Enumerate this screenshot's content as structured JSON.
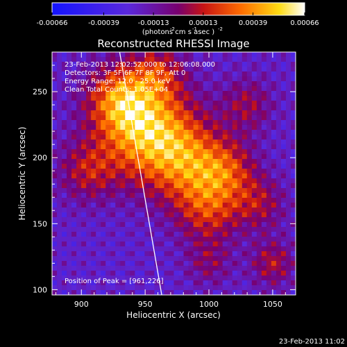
{
  "chart_data": {
    "type": "heatmap",
    "title": "Reconstructed RHESSI Image",
    "xlabel": "Heliocentric X (arcsec)",
    "ylabel": "Heliocentric Y (arcsec)",
    "xlim": [
      877,
      1068
    ],
    "ylim": [
      96,
      280
    ],
    "x_ticks": [
      900,
      950,
      1000,
      1050
    ],
    "y_ticks": [
      100,
      150,
      200,
      250
    ],
    "annotations": [
      "23-Feb-2013 12:02:52.000 to 12:06:08.000",
      "Detectors: 3F 5F 6F 7F 8F 9F, Att 0",
      "Energy Range: 12.0 - 25.0 keV",
      "Clean    Total Counts: 1.05E+04"
    ],
    "peak_label": "Position of Peak = [961,226]",
    "peak": [
      961,
      226
    ],
    "limb_line": [
      [
        930,
        280
      ],
      [
        963,
        96
      ]
    ],
    "colorbar": {
      "range": [
        -0.00066,
        0.00066
      ],
      "tick_values": [
        -0.00066,
        -0.00039,
        -0.00013,
        0.00013,
        0.00039,
        0.00066
      ],
      "tick_labels": [
        "-0.00066",
        "-0.00039",
        "-0.00013",
        "0.00013",
        "0.00039",
        "0.00066"
      ],
      "unit_label": "(photons cm  s  asec )",
      "unit_exponents": [
        "-2",
        "-1",
        "-2"
      ]
    },
    "sources": [
      {
        "x": 952,
        "y": 220,
        "amp": 0.00066,
        "sigma": 26
      },
      {
        "x": 930,
        "y": 245,
        "amp": 0.00045,
        "sigma": 18
      },
      {
        "x": 985,
        "y": 195,
        "amp": 0.00042,
        "sigma": 22
      },
      {
        "x": 1000,
        "y": 160,
        "amp": 0.00035,
        "sigma": 18
      },
      {
        "x": 1015,
        "y": 190,
        "amp": 0.00032,
        "sigma": 16
      },
      {
        "x": 905,
        "y": 190,
        "amp": 0.0003,
        "sigma": 16
      },
      {
        "x": 1030,
        "y": 240,
        "amp": 0.00025,
        "sigma": 14
      },
      {
        "x": 1050,
        "y": 120,
        "amp": 0.0003,
        "sigma": 12
      },
      {
        "x": 1040,
        "y": 165,
        "amp": 0.00026,
        "sigma": 14
      },
      {
        "x": 1000,
        "y": 120,
        "amp": 0.0002,
        "sigma": 12
      },
      {
        "x": 960,
        "y": 265,
        "amp": 0.0003,
        "sigma": 14
      }
    ]
  },
  "footer": {
    "timestamp": "23-Feb-2013 11:02"
  },
  "colors": {
    "background": "#000000",
    "text": "#ffffff",
    "limb": "#ffffff"
  }
}
